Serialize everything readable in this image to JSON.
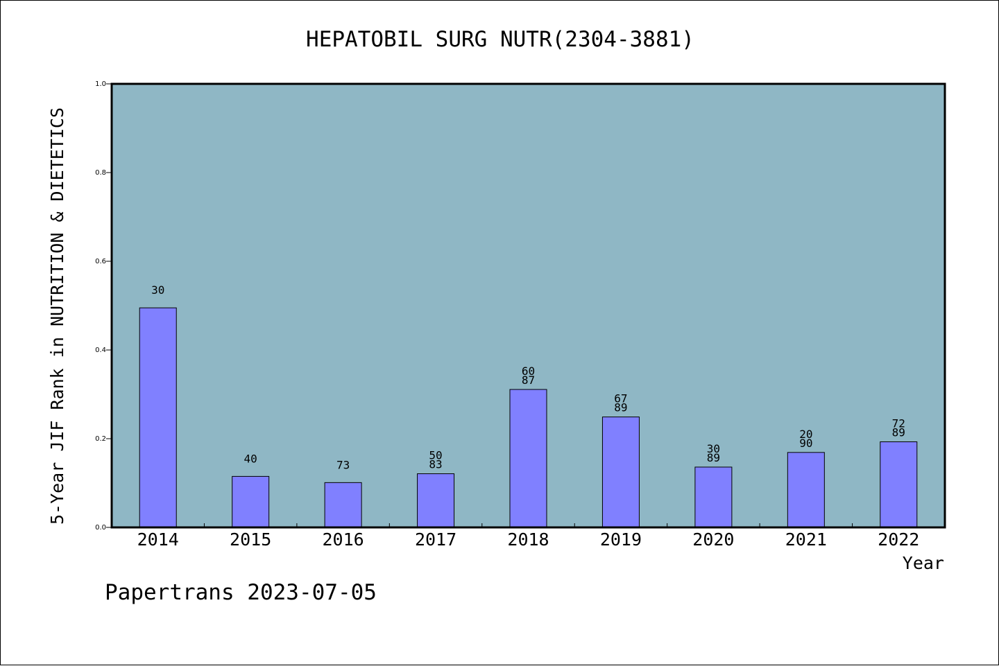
{
  "chart_data": {
    "type": "bar",
    "title": "HEPATOBIL SURG NUTR(2304-3881)",
    "xlabel": "Year",
    "ylabel": "5-Year JIF Rank in NUTRITION & DIETETICS",
    "ylim": [
      0.0,
      1.0
    ],
    "yticks": [
      "0.0",
      "0.2",
      "0.4",
      "0.6",
      "0.8",
      "1.0"
    ],
    "categories": [
      "2014",
      "2015",
      "2016",
      "2017",
      "2018",
      "2019",
      "2020",
      "2021",
      "2022"
    ],
    "values": [
      0.495,
      0.115,
      0.101,
      0.121,
      0.311,
      0.249,
      0.136,
      0.169,
      0.193
    ],
    "bar_labels": [
      [
        "30"
      ],
      [
        "40"
      ],
      [
        "73"
      ],
      [
        "50",
        "83"
      ],
      [
        "60",
        "87"
      ],
      [
        "67",
        "89"
      ],
      [
        "30",
        "89"
      ],
      [
        "20",
        "90"
      ],
      [
        "72",
        "89"
      ]
    ],
    "grid": false,
    "colors": {
      "plot_background": "#8fb7c5",
      "bar_fill": "#8080ff",
      "bar_stroke": "#000000"
    }
  },
  "footer": {
    "text": "Papertrans 2023-07-05"
  }
}
